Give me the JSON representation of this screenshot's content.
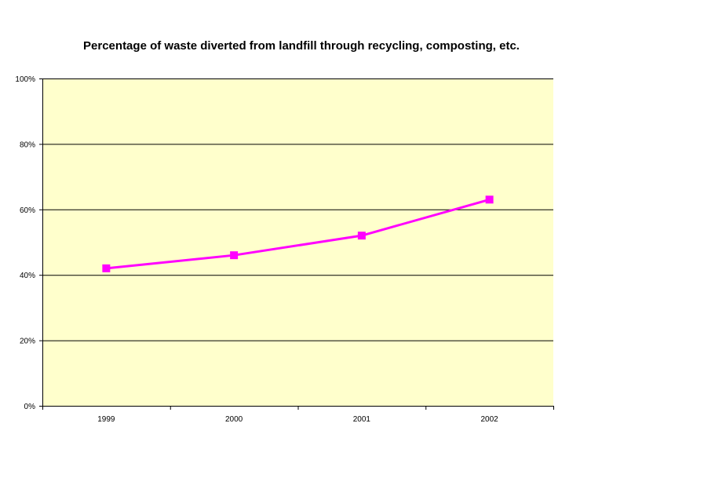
{
  "chart_data": {
    "type": "line",
    "title": "Percentage of waste diverted from landfill through recycling, composting, etc.",
    "xlabel": "",
    "ylabel": "",
    "categories": [
      "1999",
      "2000",
      "2001",
      "2002"
    ],
    "series": [
      {
        "values": [
          42,
          46,
          52,
          63
        ],
        "color": "#ff00ff",
        "marker": "square"
      }
    ],
    "ylim": [
      0,
      100
    ],
    "yticks": [
      0,
      20,
      40,
      60,
      80,
      100
    ],
    "ytick_labels": [
      "0%",
      "20%",
      "40%",
      "60%",
      "80%",
      "100%"
    ],
    "plot_background": "#ffffcc",
    "grid": true,
    "legend": "none"
  }
}
